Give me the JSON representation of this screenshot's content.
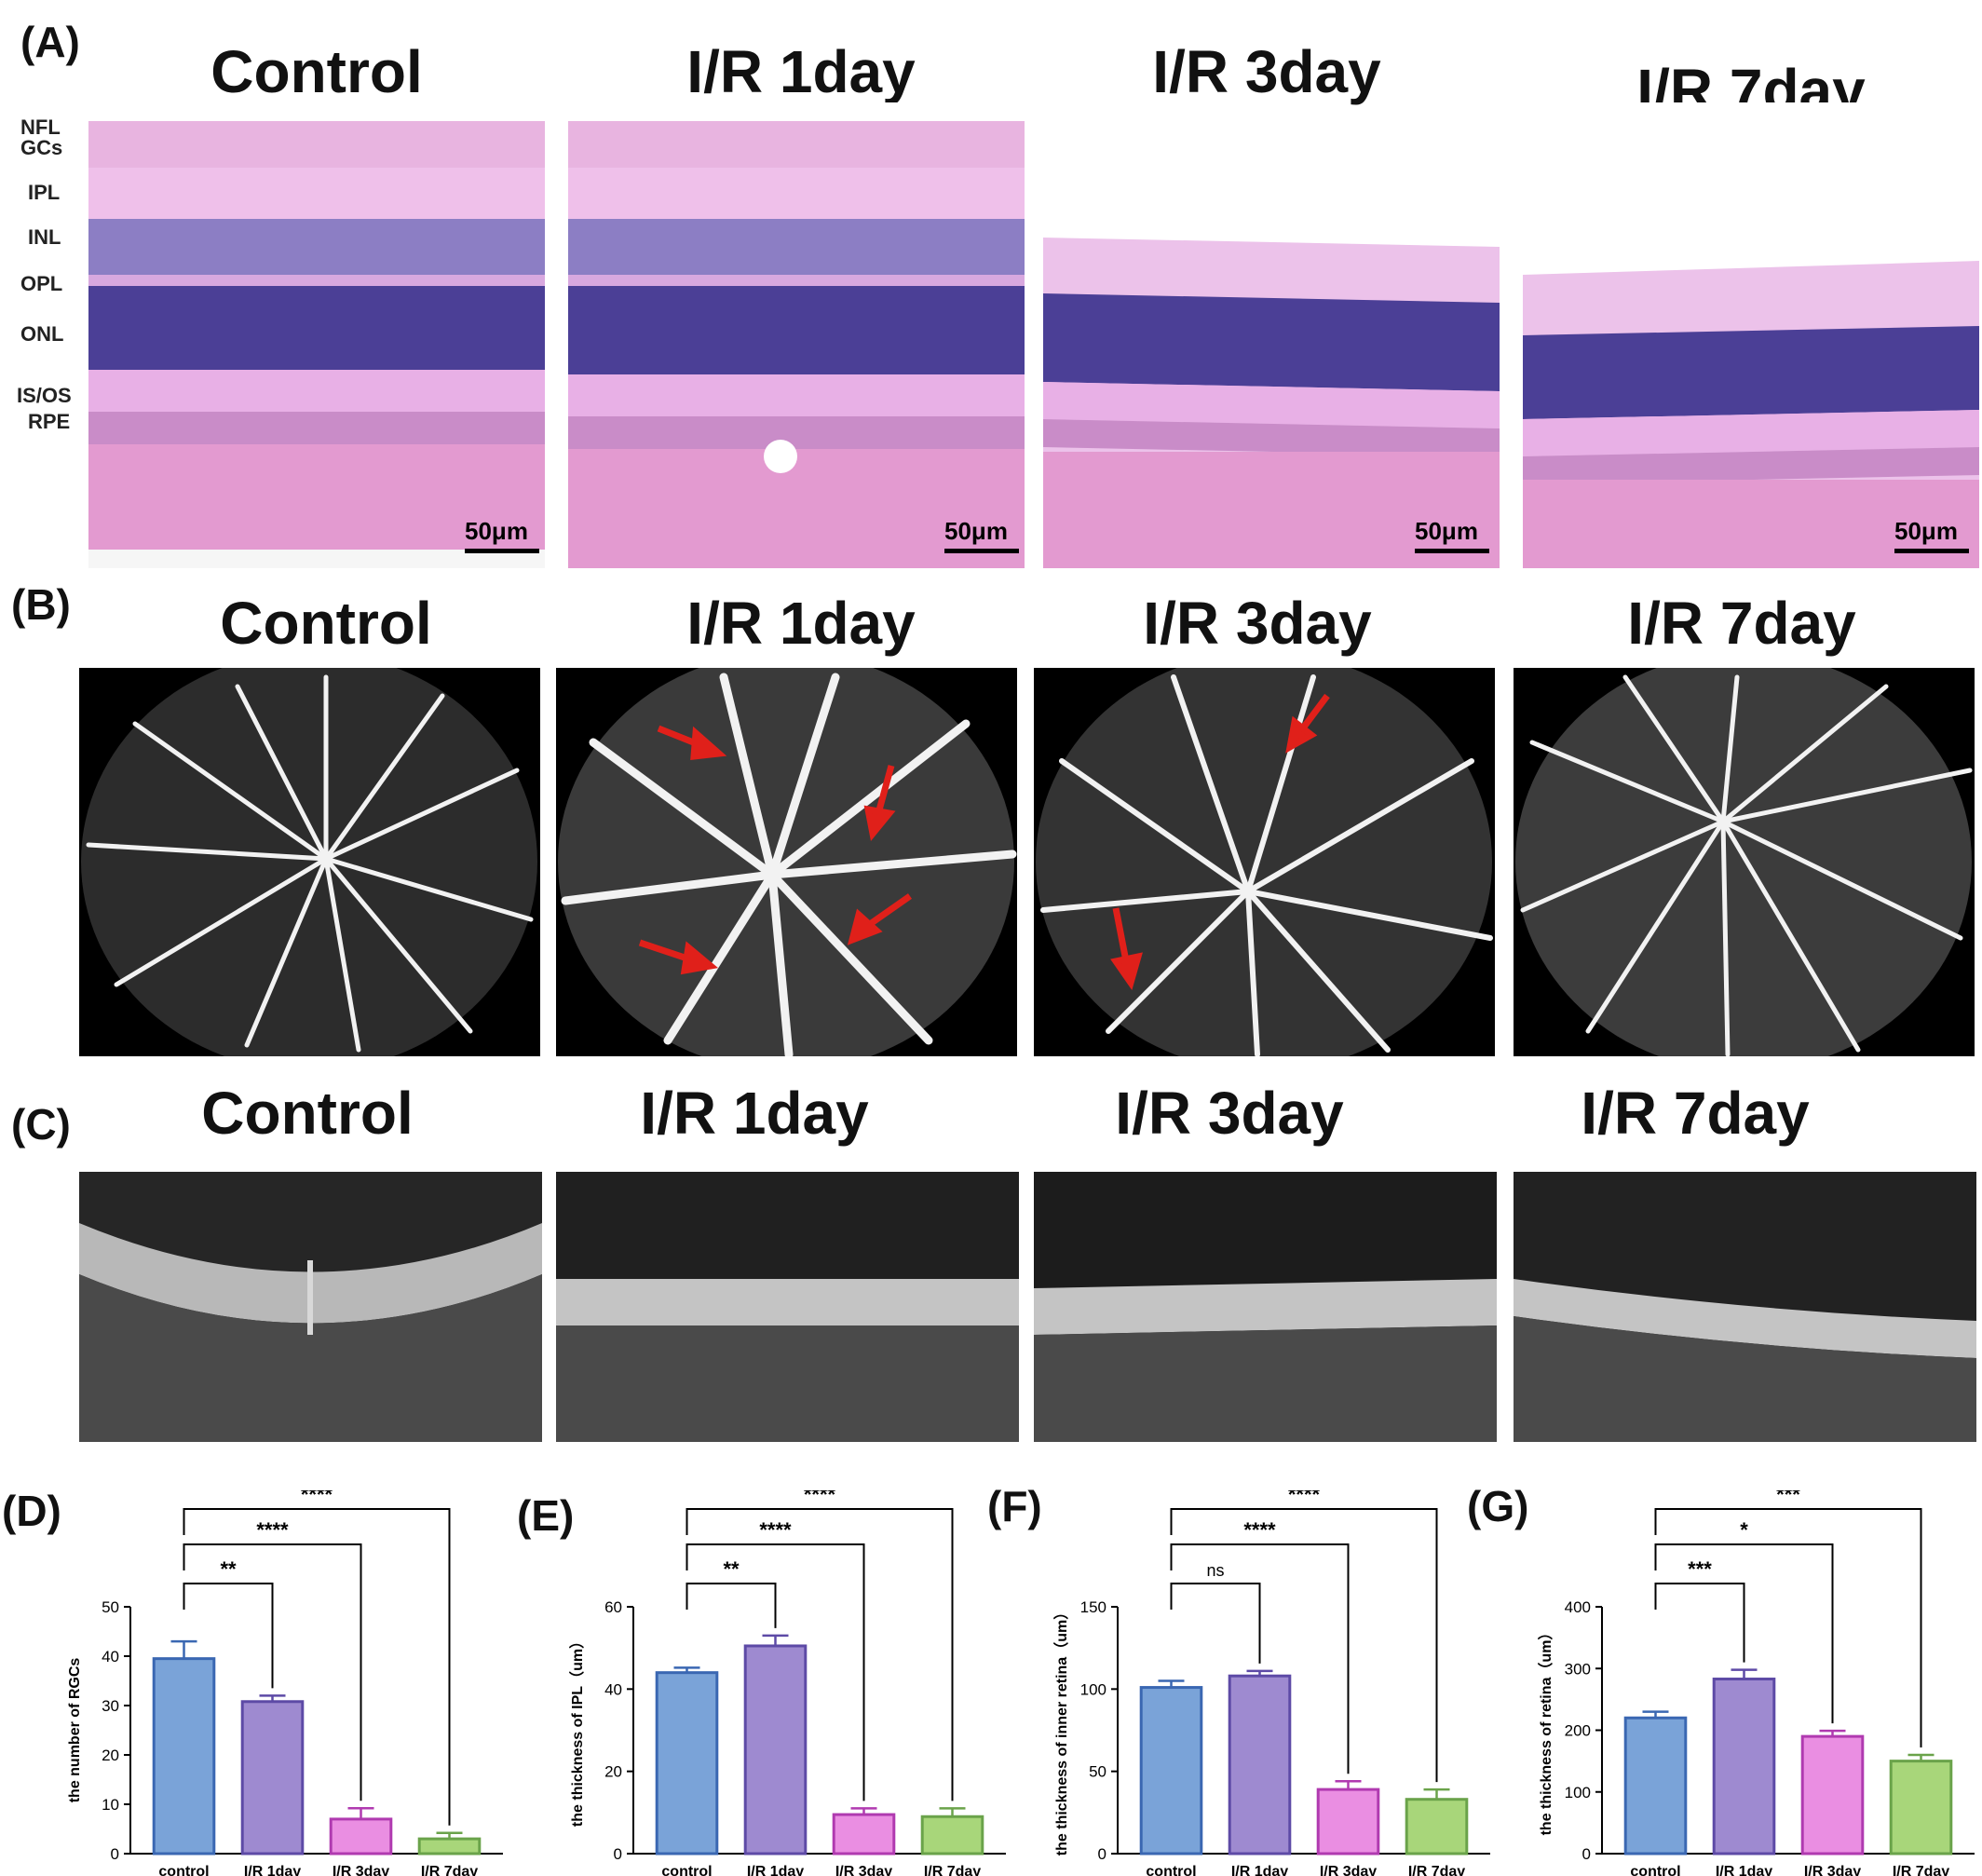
{
  "panels": {
    "A": "(A)",
    "B": "(B)",
    "C": "(C)",
    "D": "(D)",
    "E": "(E)",
    "F": "(F)",
    "G": "(G)"
  },
  "groups": [
    "Control",
    "I/R 1day",
    "I/R 3day",
    "I/R 7day"
  ],
  "histology": {
    "layers": [
      "NFL",
      "GCs",
      "IPL",
      "INL",
      "OPL",
      "ONL",
      "IS/OS",
      "RPE"
    ],
    "scale_label": "50μm",
    "colors": {
      "stroma": "#e39ad0",
      "nuclei": "#4b3f96",
      "ipl": "#efb9e6",
      "background": "#ffffff"
    }
  },
  "angiography": {
    "arrow_color": "#e0201a"
  },
  "chart_data": [
    {
      "type": "bar",
      "panel": "D",
      "ylabel": "the number of RGCs",
      "categories": [
        "control",
        "I/R 1day",
        "I/R 3day",
        "I/R 7day"
      ],
      "values": [
        39.5,
        30.8,
        7.0,
        3.0
      ],
      "errors": [
        3.5,
        1.2,
        2.2,
        1.2
      ],
      "ylim": [
        0,
        50
      ],
      "yticks": [
        "0",
        "10",
        "20",
        "30",
        "40",
        "50"
      ],
      "tickvals": [
        0,
        10,
        20,
        30,
        40,
        50
      ],
      "colors": [
        "#7aa3d8",
        "#9e8ad0",
        "#ea8ee2",
        "#a8d67a"
      ],
      "edges": [
        "#3a67b2",
        "#5d4aa6",
        "#b03ab0",
        "#6aa34a"
      ],
      "significance": [
        {
          "from": 0,
          "to": 1,
          "label": "**"
        },
        {
          "from": 0,
          "to": 2,
          "label": "****"
        },
        {
          "from": 0,
          "to": 3,
          "label": "****"
        }
      ]
    },
    {
      "type": "bar",
      "panel": "E",
      "ylabel": "the thickness of IPL（um）",
      "categories": [
        "control",
        "I/R 1day",
        "I/R 3day",
        "I/R 7day"
      ],
      "values": [
        44.0,
        50.5,
        9.5,
        9.0
      ],
      "errors": [
        1.2,
        2.5,
        1.5,
        2.0
      ],
      "ylim": [
        0,
        60
      ],
      "yticks": [
        "0",
        "20",
        "40",
        "60"
      ],
      "tickvals": [
        0,
        20,
        40,
        60
      ],
      "colors": [
        "#7aa3d8",
        "#9e8ad0",
        "#ea8ee2",
        "#a8d67a"
      ],
      "edges": [
        "#3a67b2",
        "#5d4aa6",
        "#b03ab0",
        "#6aa34a"
      ],
      "significance": [
        {
          "from": 0,
          "to": 1,
          "label": "**"
        },
        {
          "from": 0,
          "to": 2,
          "label": "****"
        },
        {
          "from": 0,
          "to": 3,
          "label": "****"
        }
      ]
    },
    {
      "type": "bar",
      "panel": "F",
      "ylabel": "the thickness of inner retina（um）",
      "categories": [
        "control",
        "I/R 1day",
        "I/R 3day",
        "I/R 7day"
      ],
      "values": [
        101,
        108,
        39,
        33
      ],
      "errors": [
        4,
        3,
        5,
        6
      ],
      "ylim": [
        0,
        150
      ],
      "yticks": [
        "0",
        "50",
        "100",
        "150"
      ],
      "tickvals": [
        0,
        50,
        100,
        150
      ],
      "colors": [
        "#7aa3d8",
        "#9e8ad0",
        "#ea8ee2",
        "#a8d67a"
      ],
      "edges": [
        "#3a67b2",
        "#5d4aa6",
        "#b03ab0",
        "#6aa34a"
      ],
      "significance": [
        {
          "from": 0,
          "to": 1,
          "label": "ns"
        },
        {
          "from": 0,
          "to": 2,
          "label": "****"
        },
        {
          "from": 0,
          "to": 3,
          "label": "****"
        }
      ]
    },
    {
      "type": "bar",
      "panel": "G",
      "ylabel": "the thickness of retina（um）",
      "categories": [
        "control",
        "I/R 1day",
        "I/R 3day",
        "I/R 7day"
      ],
      "values": [
        220,
        283,
        190,
        150
      ],
      "errors": [
        10,
        15,
        9,
        10
      ],
      "ylim": [
        0,
        400
      ],
      "yticks": [
        "0",
        "100",
        "200",
        "300",
        "400"
      ],
      "tickvals": [
        0,
        100,
        200,
        300,
        400
      ],
      "colors": [
        "#7aa3d8",
        "#9e8ad0",
        "#ea8ee2",
        "#a8d67a"
      ],
      "edges": [
        "#3a67b2",
        "#5d4aa6",
        "#b03ab0",
        "#6aa34a"
      ],
      "significance": [
        {
          "from": 0,
          "to": 1,
          "label": "***"
        },
        {
          "from": 0,
          "to": 2,
          "label": "*"
        },
        {
          "from": 0,
          "to": 3,
          "label": "***"
        }
      ]
    }
  ]
}
